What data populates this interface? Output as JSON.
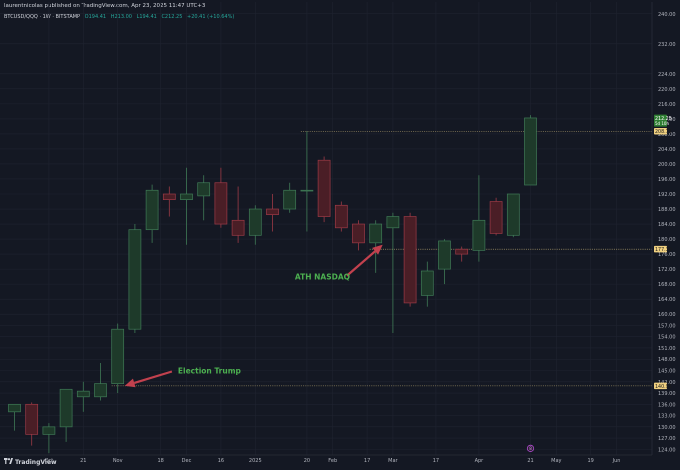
{
  "header": {
    "published": "laurentnicolas published on TradingView.com, Apr 23, 2025 11:47 UTC+3",
    "symbol": "BTCUSD/QQQ · 1W · BITSTAMP",
    "ohlc": {
      "open": "O194.41",
      "high": "H213.00",
      "low": "L194.41",
      "close": "C212.25",
      "change": "+20.41 (+10.64%)"
    }
  },
  "branding": {
    "name": "TradingView",
    "logo": "tradingview-logo-icon"
  },
  "colors": {
    "background": "#141823",
    "up": "#1e3a2a",
    "up_border": "#3f7a56",
    "down": "#4a1e26",
    "down_border": "#9c3a46",
    "wick": "#8a8f99",
    "grid": "#1f2330",
    "annotation_text": "#4caf50",
    "arrow": "#c2414e",
    "price_tag_green": "#2e7d32",
    "price_tag_yellow": "#f0d080"
  },
  "chart_data": {
    "type": "candlestick",
    "candles": [
      {
        "o": 134,
        "h": 136,
        "l": 129,
        "c": 136
      },
      {
        "o": 136,
        "h": 136.5,
        "l": 125,
        "c": 128
      },
      {
        "o": 128,
        "h": 131,
        "l": 123,
        "c": 130
      },
      {
        "o": 130,
        "h": 140,
        "l": 126,
        "c": 140
      },
      {
        "o": 138,
        "h": 142,
        "l": 134,
        "c": 139.5
      },
      {
        "o": 138,
        "h": 147,
        "l": 137,
        "c": 141.5
      },
      {
        "o": 141.5,
        "h": 157.5,
        "l": 139,
        "c": 156
      },
      {
        "o": 156,
        "h": 184,
        "l": 155,
        "c": 182.5
      },
      {
        "o": 182.5,
        "h": 194.5,
        "l": 179,
        "c": 193
      },
      {
        "o": 192,
        "h": 194,
        "l": 186,
        "c": 190.5
      },
      {
        "o": 190.5,
        "h": 199,
        "l": 178.5,
        "c": 192
      },
      {
        "o": 191.5,
        "h": 197,
        "l": 185,
        "c": 195
      },
      {
        "o": 195,
        "h": 199,
        "l": 183,
        "c": 184
      },
      {
        "o": 185,
        "h": 194,
        "l": 179,
        "c": 181
      },
      {
        "o": 181,
        "h": 189,
        "l": 178.5,
        "c": 188
      },
      {
        "o": 188,
        "h": 192,
        "l": 182,
        "c": 186.5
      },
      {
        "o": 188,
        "h": 195,
        "l": 187,
        "c": 193
      },
      {
        "o": 193,
        "h": 208.7,
        "l": 182,
        "c": 193
      },
      {
        "o": 201,
        "h": 202,
        "l": 184.5,
        "c": 186
      },
      {
        "o": 189,
        "h": 190,
        "l": 182,
        "c": 183
      },
      {
        "o": 184,
        "h": 185,
        "l": 177,
        "c": 179
      },
      {
        "o": 179,
        "h": 185,
        "l": 171,
        "c": 184
      },
      {
        "o": 183,
        "h": 187,
        "l": 155,
        "c": 186
      },
      {
        "o": 186,
        "h": 187,
        "l": 162,
        "c": 163
      },
      {
        "o": 165,
        "h": 174,
        "l": 162,
        "c": 171.5
      },
      {
        "o": 172,
        "h": 180,
        "l": 168,
        "c": 179.5
      },
      {
        "o": 177.3,
        "h": 178,
        "l": 174,
        "c": 176
      },
      {
        "o": 177,
        "h": 197,
        "l": 174,
        "c": 185
      },
      {
        "o": 190,
        "h": 191,
        "l": 181,
        "c": 181.5
      },
      {
        "o": 181,
        "h": 192,
        "l": 180.5,
        "c": 192
      },
      {
        "o": 194.4,
        "h": 213,
        "l": 194.4,
        "c": 212.25
      }
    ],
    "y_ticks": [
      "240.00",
      "232.00",
      "224.00",
      "220.00",
      "216.00",
      "212.00",
      "208.00",
      "204.00",
      "200.00",
      "196.00",
      "192.00",
      "188.00",
      "184.00",
      "180.00",
      "176.00",
      "172.00",
      "168.00",
      "164.00",
      "160.00",
      "157.00",
      "154.00",
      "151.00",
      "148.00",
      "145.00",
      "142.00",
      "139.00",
      "136.00",
      "133.00",
      "130.00",
      "127.00",
      "124.00"
    ],
    "y_tick_values": [
      240,
      232,
      224,
      220,
      216,
      212,
      208,
      204,
      200,
      196,
      192,
      188,
      184,
      180,
      176,
      172,
      168,
      164,
      160,
      157,
      154,
      151,
      148,
      145,
      142,
      139,
      136,
      133,
      130,
      127,
      124
    ],
    "x_ticks": [
      {
        "label": "Oct",
        "index": 2
      },
      {
        "label": "21",
        "index": 4
      },
      {
        "label": "Nov",
        "index": 6
      },
      {
        "label": "18",
        "index": 8.5
      },
      {
        "label": "Dec",
        "index": 10
      },
      {
        "label": "16",
        "index": 12
      },
      {
        "label": "2025",
        "index": 14
      },
      {
        "label": "20",
        "index": 17
      },
      {
        "label": "Feb",
        "index": 18.5
      },
      {
        "label": "17",
        "index": 20.5
      },
      {
        "label": "Mar",
        "index": 22
      },
      {
        "label": "17",
        "index": 24.5
      },
      {
        "label": "Apr",
        "index": 27
      },
      {
        "label": "21",
        "index": 30
      },
      {
        "label": "May",
        "index": 31.5
      },
      {
        "label": "19",
        "index": 33.5
      },
      {
        "label": "Jun",
        "index": 35
      }
    ],
    "ylim": [
      122.5,
      241
    ],
    "price_tags": [
      {
        "value": 212.25,
        "label": "212.25",
        "sub": "5d 10h",
        "color": "#2e7d32"
      },
      {
        "value": 208.71,
        "label": "208.71",
        "color": "#f0d080"
      },
      {
        "value": 177.3,
        "label": "177.30",
        "color": "#f0d080"
      },
      {
        "value": 140.91,
        "label": "140.91",
        "color": "#f0d080"
      }
    ],
    "levels": [
      {
        "value": 208.71,
        "from_index": 17
      },
      {
        "value": 177.3,
        "from_index": 21
      },
      {
        "value": 140.91,
        "from_index": 6
      }
    ],
    "annotations": [
      {
        "text": "Election Trump",
        "target_index": 6,
        "target_value": 140.91,
        "text_index": 9.5,
        "text_value": 145
      },
      {
        "text": "ATH NASDAQ",
        "target_index": 21,
        "target_value": 178.5,
        "text_index": 17,
        "text_value": 170.5
      }
    ],
    "marker": {
      "index": 30,
      "value": 124,
      "label": "8"
    }
  }
}
